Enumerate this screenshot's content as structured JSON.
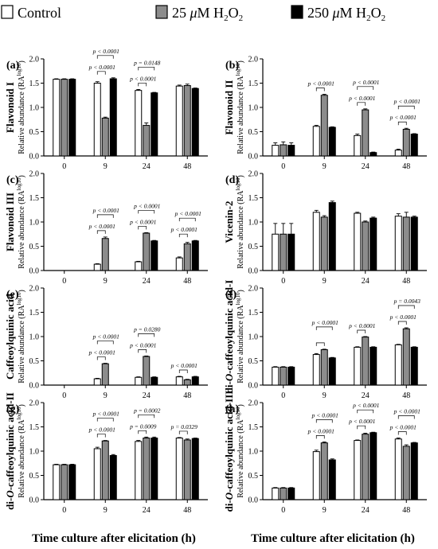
{
  "legend": [
    {
      "name": "Control",
      "color": "#ffffff"
    },
    {
      "name_pre": "25 ",
      "mu": "μ",
      "name_mid": "M H",
      "sub": "2",
      "name_mid2": "O",
      "sub2": "2",
      "color": "#8c8c8c"
    },
    {
      "name_pre": "250 ",
      "mu": "μ",
      "name_mid": "M H",
      "sub": "2",
      "name_mid2": "O",
      "sub2": "2",
      "color": "#000000"
    }
  ],
  "x_title": "Time culture after elicitation (h)",
  "chart_data": [
    {
      "type": "bar",
      "letter": "(a)",
      "title": "Flavonoid I",
      "ylabel": "Relative abundance (RA",
      "ylabel_sup": "log10",
      "ylabel_end": ")",
      "categories": [
        "0",
        "9",
        "24",
        "48"
      ],
      "ylim": [
        0,
        2.0
      ],
      "yticks": [
        "0.0",
        "0.5",
        "1.0",
        "1.5",
        "2.0"
      ],
      "series": [
        {
          "name": "Control",
          "values": [
            1.58,
            1.5,
            1.35,
            1.44
          ],
          "errors": [
            0.01,
            0.03,
            0.02,
            0.02
          ]
        },
        {
          "name": "25 μM H2O2",
          "values": [
            1.58,
            0.78,
            0.63,
            1.45
          ],
          "errors": [
            0.01,
            0.02,
            0.05,
            0.03
          ]
        },
        {
          "name": "250 μM H2O2",
          "values": [
            1.58,
            1.59,
            1.3,
            1.39
          ],
          "errors": [
            0.01,
            0.02,
            0.01,
            0.01
          ]
        }
      ],
      "brackets": [
        {
          "cat": 1,
          "from": 0,
          "to": 2,
          "label": "p < 0.0001"
        },
        {
          "cat": 1,
          "from": 0,
          "to": 1,
          "label": "p < 0.0001"
        },
        {
          "cat": 2,
          "from": 0,
          "to": 2,
          "label": "p = 0.0148"
        },
        {
          "cat": 2,
          "from": 0,
          "to": 1,
          "label": "p < 0.0001"
        }
      ]
    },
    {
      "type": "bar",
      "letter": "(b)",
      "title": "Flavonoid II",
      "ylabel": "Relative abundance (RA",
      "ylabel_sup": "log10",
      "ylabel_end": ")",
      "categories": [
        "0",
        "9",
        "24",
        "48"
      ],
      "ylim": [
        0,
        2.0
      ],
      "yticks": [
        "0.0",
        "0.5",
        "1.0",
        "1.5",
        "2.0"
      ],
      "series": [
        {
          "name": "Control",
          "values": [
            0.22,
            0.61,
            0.42,
            0.12
          ],
          "errors": [
            0.05,
            0.02,
            0.03,
            0.02
          ]
        },
        {
          "name": "25 μM H2O2",
          "values": [
            0.23,
            1.25,
            0.95,
            0.55
          ],
          "errors": [
            0.06,
            0.02,
            0.02,
            0.02
          ]
        },
        {
          "name": "250 μM H2O2",
          "values": [
            0.22,
            0.59,
            0.07,
            0.45
          ],
          "errors": [
            0.05,
            0.01,
            0.01,
            0.01
          ]
        }
      ],
      "brackets": [
        {
          "cat": 1,
          "from": 0,
          "to": 1,
          "label": "p < 0.0001"
        },
        {
          "cat": 2,
          "from": 0,
          "to": 2,
          "label": "p < 0.0001"
        },
        {
          "cat": 2,
          "from": 0,
          "to": 1,
          "label": "p < 0.0001"
        },
        {
          "cat": 3,
          "from": 0,
          "to": 2,
          "label": "p < 0.0001"
        },
        {
          "cat": 3,
          "from": 0,
          "to": 1,
          "label": "p < 0.0001"
        }
      ]
    },
    {
      "type": "bar",
      "letter": "(c)",
      "title": "Flavonoid III",
      "ylabel": "Relative abundance (RA",
      "ylabel_sup": "log10",
      "ylabel_end": ")",
      "categories": [
        "0",
        "9",
        "24",
        "48"
      ],
      "ylim": [
        0,
        2.0
      ],
      "yticks": [
        "0.0",
        "0.5",
        "1.0",
        "1.5",
        "2.0"
      ],
      "series": [
        {
          "name": "Control",
          "values": [
            0,
            0.13,
            0.18,
            0.26
          ],
          "errors": [
            0,
            0.01,
            0.01,
            0.02
          ]
        },
        {
          "name": "25 μM H2O2",
          "values": [
            0,
            0.66,
            0.77,
            0.55
          ],
          "errors": [
            0,
            0.03,
            0.01,
            0.03
          ]
        },
        {
          "name": "250 μM H2O2",
          "values": [
            0,
            0,
            0.61,
            0.61
          ],
          "errors": [
            0,
            0,
            0.01,
            0.01
          ]
        }
      ],
      "brackets": [
        {
          "cat": 1,
          "from": 0,
          "to": 2,
          "label": "p < 0.0001"
        },
        {
          "cat": 1,
          "from": 0,
          "to": 1,
          "label": "p < 0.0001"
        },
        {
          "cat": 2,
          "from": 0,
          "to": 2,
          "label": "p < 0.0001"
        },
        {
          "cat": 2,
          "from": 0,
          "to": 1,
          "label": "p < 0.0001"
        },
        {
          "cat": 3,
          "from": 0,
          "to": 2,
          "label": "p < 0.0001"
        },
        {
          "cat": 3,
          "from": 0,
          "to": 1,
          "label": "p < 0.0001"
        }
      ]
    },
    {
      "type": "bar",
      "letter": "(d)",
      "title": "Vicenin-2",
      "ylabel": "Relative abundance (RA",
      "ylabel_sup": "log10",
      "ylabel_end": ")",
      "categories": [
        "0",
        "9",
        "24",
        "48"
      ],
      "ylim": [
        0,
        2.0
      ],
      "yticks": [
        "0.0",
        "0.5",
        "1.0",
        "1.5",
        "2.0"
      ],
      "series": [
        {
          "name": "Control",
          "values": [
            0.75,
            1.2,
            1.18,
            1.12
          ],
          "errors": [
            0.22,
            0.04,
            0.02,
            0.05
          ]
        },
        {
          "name": "25 μM H2O2",
          "values": [
            0.75,
            1.1,
            1.0,
            1.1
          ],
          "errors": [
            0.22,
            0.03,
            0.02,
            0.1
          ]
        },
        {
          "name": "250 μM H2O2",
          "values": [
            0.75,
            1.4,
            1.08,
            1.1
          ],
          "errors": [
            0.22,
            0.03,
            0.02,
            0.02
          ]
        }
      ],
      "brackets": []
    },
    {
      "type": "bar",
      "letter": "(e)",
      "title": "Caffeoylquinic acid",
      "ylabel": "Relative abundance (RA",
      "ylabel_sup": "log10",
      "ylabel_end": ")",
      "categories": [
        "0",
        "9",
        "24",
        "48"
      ],
      "ylim": [
        0,
        2.0
      ],
      "yticks": [
        "0.0",
        "0.5",
        "1.0",
        "1.5",
        "2.0"
      ],
      "series": [
        {
          "name": "Control",
          "values": [
            0,
            0.13,
            0.16,
            0.17
          ],
          "errors": [
            0,
            0.01,
            0.01,
            0.01
          ]
        },
        {
          "name": "25 μM H2O2",
          "values": [
            0,
            0.44,
            0.59,
            0.11
          ],
          "errors": [
            0,
            0.01,
            0.01,
            0.01
          ]
        },
        {
          "name": "250 μM H2O2",
          "values": [
            0,
            0,
            0.16,
            0.17
          ],
          "errors": [
            0,
            0,
            0.01,
            0.01
          ]
        }
      ],
      "brackets": [
        {
          "cat": 1,
          "from": 0,
          "to": 2,
          "label": "p < 0.0001"
        },
        {
          "cat": 1,
          "from": 0,
          "to": 1,
          "label": "p < 0.0001"
        },
        {
          "cat": 2,
          "from": 0,
          "to": 2,
          "label": "p = 0.0280"
        },
        {
          "cat": 2,
          "from": 0,
          "to": 1,
          "label": "p < 0.0001"
        },
        {
          "cat": 3,
          "from": 0,
          "to": 1,
          "label": "p < 0.0001"
        }
      ]
    },
    {
      "type": "bar",
      "letter": "(f)",
      "title_pre": "di-",
      "title_it": "O",
      "title_post": "-caffeoylquinic acid-I",
      "ylabel": "Relative abundance (RA",
      "ylabel_sup": "log10",
      "ylabel_end": ")",
      "categories": [
        "0",
        "9",
        "24",
        "48"
      ],
      "ylim": [
        0,
        2.0
      ],
      "yticks": [
        "0.0",
        "0.5",
        "1.0",
        "1.5",
        "2.0"
      ],
      "series": [
        {
          "name": "Control",
          "values": [
            0.37,
            0.63,
            0.78,
            0.83
          ],
          "errors": [
            0.01,
            0.02,
            0.01,
            0.01
          ]
        },
        {
          "name": "25 μM H2O2",
          "values": [
            0.37,
            0.73,
            0.99,
            1.16
          ],
          "errors": [
            0.01,
            0.01,
            0.01,
            0.02
          ]
        },
        {
          "name": "250 μM H2O2",
          "values": [
            0.37,
            0.56,
            0.78,
            0.78
          ],
          "errors": [
            0.01,
            0.01,
            0.01,
            0.01
          ]
        }
      ],
      "brackets": [
        {
          "cat": 1,
          "from": 0,
          "to": 2,
          "label": "p < 0.0001"
        },
        {
          "cat": 1,
          "from": 0,
          "to": 1,
          "label": ""
        },
        {
          "cat": 2,
          "from": 0,
          "to": 1,
          "label": "p < 0.0001"
        },
        {
          "cat": 3,
          "from": 0,
          "to": 2,
          "label": "p = 0.0043"
        },
        {
          "cat": 3,
          "from": 0,
          "to": 1,
          "label": "p < 0.0001"
        }
      ]
    },
    {
      "type": "bar",
      "letter": "(g)",
      "title_pre": "di-",
      "title_it": "O",
      "title_post": "-caffeoylquinic acid-II",
      "ylabel": "Relative abundance (RA",
      "ylabel_sup": "log10",
      "ylabel_end": ")",
      "categories": [
        "0",
        "9",
        "24",
        "48"
      ],
      "ylim": [
        0,
        2.0
      ],
      "yticks": [
        "0.0",
        "0.5",
        "1.0",
        "1.5",
        "2.0"
      ],
      "series": [
        {
          "name": "Control",
          "values": [
            0.72,
            1.05,
            1.2,
            1.27
          ],
          "errors": [
            0.01,
            0.03,
            0.02,
            0.01
          ]
        },
        {
          "name": "25 μM H2O2",
          "values": [
            0.72,
            1.21,
            1.27,
            1.23
          ],
          "errors": [
            0.01,
            0.01,
            0.02,
            0.02
          ]
        },
        {
          "name": "250 μM H2O2",
          "values": [
            0.72,
            0.91,
            1.27,
            1.26
          ],
          "errors": [
            0.01,
            0.02,
            0.02,
            0.01
          ]
        }
      ],
      "brackets": [
        {
          "cat": 1,
          "from": 0,
          "to": 2,
          "label": "p < 0.0001"
        },
        {
          "cat": 1,
          "from": 0,
          "to": 1,
          "label": "p < 0.0001"
        },
        {
          "cat": 2,
          "from": 0,
          "to": 2,
          "label": "p = 0.0002"
        },
        {
          "cat": 2,
          "from": 0,
          "to": 1,
          "label": "p = 0.0009"
        },
        {
          "cat": 3,
          "from": 0,
          "to": 1,
          "label": "p = 0.0329"
        }
      ]
    },
    {
      "type": "bar",
      "letter": "(h)",
      "title_pre": "di-",
      "title_it": "O",
      "title_post": "-caffeoylquinic acid-III",
      "ylabel": "Relative abundance (RA",
      "ylabel_sup": "log10",
      "ylabel_end": ")",
      "categories": [
        "0",
        "9",
        "24",
        "48"
      ],
      "ylim": [
        0,
        2.0
      ],
      "yticks": [
        "0.0",
        "0.5",
        "1.0",
        "1.5",
        "2.0"
      ],
      "series": [
        {
          "name": "Control",
          "values": [
            0.24,
            0.99,
            1.22,
            1.25
          ],
          "errors": [
            0.01,
            0.03,
            0.01,
            0.02
          ]
        },
        {
          "name": "25 μM H2O2",
          "values": [
            0.24,
            1.17,
            1.35,
            1.1
          ],
          "errors": [
            0.01,
            0.02,
            0.02,
            0.03
          ]
        },
        {
          "name": "250 μM H2O2",
          "values": [
            0.24,
            0.82,
            1.38,
            1.17
          ],
          "errors": [
            0.01,
            0.02,
            0.01,
            0.01
          ]
        }
      ],
      "brackets": [
        {
          "cat": 1,
          "from": 0,
          "to": 2,
          "label": "p < 0.0001"
        },
        {
          "cat": 1,
          "from": 0,
          "to": 1,
          "label": "p < 0.0001"
        },
        {
          "cat": 2,
          "from": 0,
          "to": 2,
          "label": "p < 0.0001"
        },
        {
          "cat": 2,
          "from": 0,
          "to": 1,
          "label": "p < 0.0001"
        },
        {
          "cat": 3,
          "from": 0,
          "to": 2,
          "label": "p < 0.0001"
        },
        {
          "cat": 3,
          "from": 0,
          "to": 1,
          "label": "p < 0.0001"
        }
      ]
    }
  ]
}
